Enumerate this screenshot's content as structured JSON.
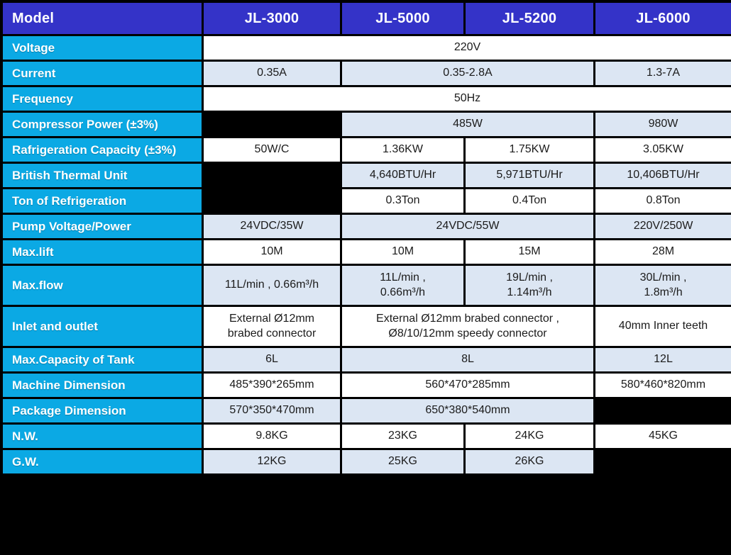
{
  "colors": {
    "header-bg": "#3433c8",
    "label-bg": "#0ba9e4",
    "row-white": "#ffffff",
    "row-alt": "#dce6f3",
    "black-cell": "#000000",
    "border": "#000000",
    "header-text": "#ffffff",
    "cell-text": "#1b1b1b"
  },
  "table": {
    "header": {
      "label": "Model",
      "columns": [
        "JL-3000",
        "JL-5000",
        "JL-5200",
        "JL-6000"
      ]
    },
    "rows": [
      {
        "label": "Voltage",
        "shade": "white",
        "cells": [
          {
            "text": "220V",
            "span": 4
          }
        ]
      },
      {
        "label": "Current",
        "shade": "alt",
        "cells": [
          {
            "text": "0.35A",
            "span": 1
          },
          {
            "text": "0.35-2.8A",
            "span": 2
          },
          {
            "text": "1.3-7A",
            "span": 1
          }
        ]
      },
      {
        "label": "Frequency",
        "shade": "white",
        "cells": [
          {
            "text": "50Hz",
            "span": 4
          }
        ]
      },
      {
        "label": "Compressor Power (±3%)",
        "shade": "alt",
        "cells": [
          {
            "text": "",
            "span": 1,
            "black": true
          },
          {
            "text": "485W",
            "span": 2
          },
          {
            "text": "980W",
            "span": 1
          }
        ]
      },
      {
        "label": "Rafrigeration Capacity (±3%)",
        "shade": "white",
        "cells": [
          {
            "text": "50W/C",
            "span": 1
          },
          {
            "text": "1.36KW",
            "span": 1
          },
          {
            "text": "1.75KW",
            "span": 1
          },
          {
            "text": "3.05KW",
            "span": 1
          }
        ]
      },
      {
        "label": "British Thermal Unit",
        "shade": "alt",
        "cells": [
          {
            "text": "",
            "span": 1,
            "black": true
          },
          {
            "text": "4,640BTU/Hr",
            "span": 1
          },
          {
            "text": "5,971BTU/Hr",
            "span": 1
          },
          {
            "text": "10,406BTU/Hr",
            "span": 1
          }
        ]
      },
      {
        "label": "Ton of Refrigeration",
        "shade": "white",
        "cells": [
          {
            "text": "",
            "span": 1,
            "black": true
          },
          {
            "text": "0.3Ton",
            "span": 1
          },
          {
            "text": "0.4Ton",
            "span": 1
          },
          {
            "text": "0.8Ton",
            "span": 1
          }
        ]
      },
      {
        "label": "Pump Voltage/Power",
        "shade": "alt",
        "cells": [
          {
            "text": "24VDC/35W",
            "span": 1
          },
          {
            "text": "24VDC/55W",
            "span": 2
          },
          {
            "text": "220V/250W",
            "span": 1
          }
        ]
      },
      {
        "label": "Max.lift",
        "shade": "white",
        "cells": [
          {
            "text": "10M",
            "span": 1
          },
          {
            "text": "10M",
            "span": 1
          },
          {
            "text": "15M",
            "span": 1
          },
          {
            "text": "28M",
            "span": 1
          }
        ]
      },
      {
        "label": "Max.flow",
        "shade": "alt",
        "cells": [
          {
            "text": "11L/min , 0.66m³/h",
            "span": 1
          },
          {
            "text": "11L/min ,\n0.66m³/h",
            "span": 1
          },
          {
            "text": "19L/min ,\n1.14m³/h",
            "span": 1
          },
          {
            "text": "30L/min ,\n1.8m³/h",
            "span": 1
          }
        ]
      },
      {
        "label": "Inlet and outlet",
        "shade": "white",
        "cells": [
          {
            "text": "External Ø12mm\nbrabed connector",
            "span": 1
          },
          {
            "text": "External Ø12mm brabed connector ,\nØ8/10/12mm speedy connector",
            "span": 2
          },
          {
            "text": "40mm Inner teeth",
            "span": 1
          }
        ]
      },
      {
        "label": "Max.Capacity of Tank",
        "shade": "alt",
        "cells": [
          {
            "text": "6L",
            "span": 1
          },
          {
            "text": "8L",
            "span": 2
          },
          {
            "text": "12L",
            "span": 1
          }
        ]
      },
      {
        "label": "Machine Dimension",
        "shade": "white",
        "cells": [
          {
            "text": "485*390*265mm",
            "span": 1
          },
          {
            "text": "560*470*285mm",
            "span": 2
          },
          {
            "text": "580*460*820mm",
            "span": 1
          }
        ]
      },
      {
        "label": "Package Dimension",
        "shade": "alt",
        "cells": [
          {
            "text": "570*350*470mm",
            "span": 1
          },
          {
            "text": "650*380*540mm",
            "span": 2
          },
          {
            "text": "",
            "span": 1,
            "black": true
          }
        ]
      },
      {
        "label": "N.W.",
        "shade": "white",
        "cells": [
          {
            "text": "9.8KG",
            "span": 1
          },
          {
            "text": "23KG",
            "span": 1
          },
          {
            "text": "24KG",
            "span": 1
          },
          {
            "text": "45KG",
            "span": 1
          }
        ]
      },
      {
        "label": "G.W.",
        "shade": "alt",
        "cells": [
          {
            "text": "12KG",
            "span": 1
          },
          {
            "text": "25KG",
            "span": 1
          },
          {
            "text": "26KG",
            "span": 1
          },
          {
            "text": "",
            "span": 1,
            "black": true
          }
        ]
      }
    ]
  }
}
